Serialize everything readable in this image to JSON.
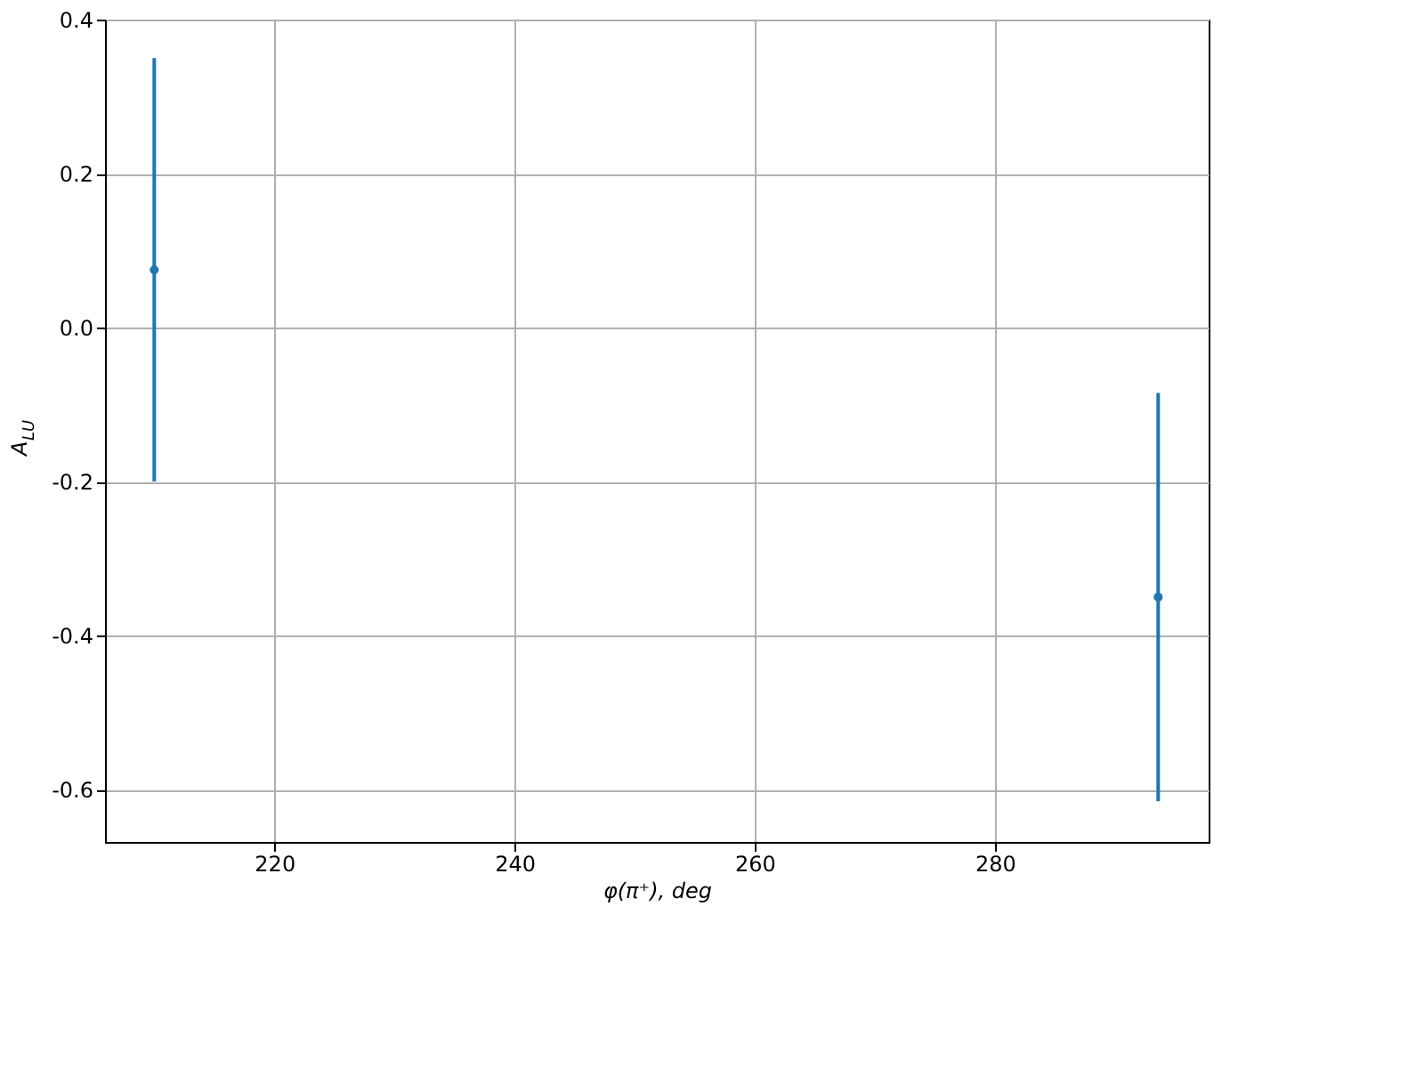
{
  "chart_data": {
    "type": "scatter",
    "xlabel": "φ(π⁺), deg",
    "ylabel": "A$_{LU}$",
    "x": [
      210,
      293.6
    ],
    "series": [
      {
        "color": "#1f77b4",
        "values": [
          0.075,
          -0.35
        ],
        "errors": [
          [
            -0.2,
            0.35
          ],
          [
            -0.615,
            -0.085
          ]
        ]
      }
    ],
    "xlim": [
      205.9,
      297.8
    ],
    "ylim": [
      -0.668,
      0.4
    ],
    "xticks": [
      220,
      240,
      260,
      280
    ],
    "yticks": [
      -0.6,
      -0.4,
      -0.2,
      {
        "value": 0,
        "label": "0.0"
      },
      0.2,
      0.4
    ],
    "grid": true,
    "marker": "circle"
  }
}
